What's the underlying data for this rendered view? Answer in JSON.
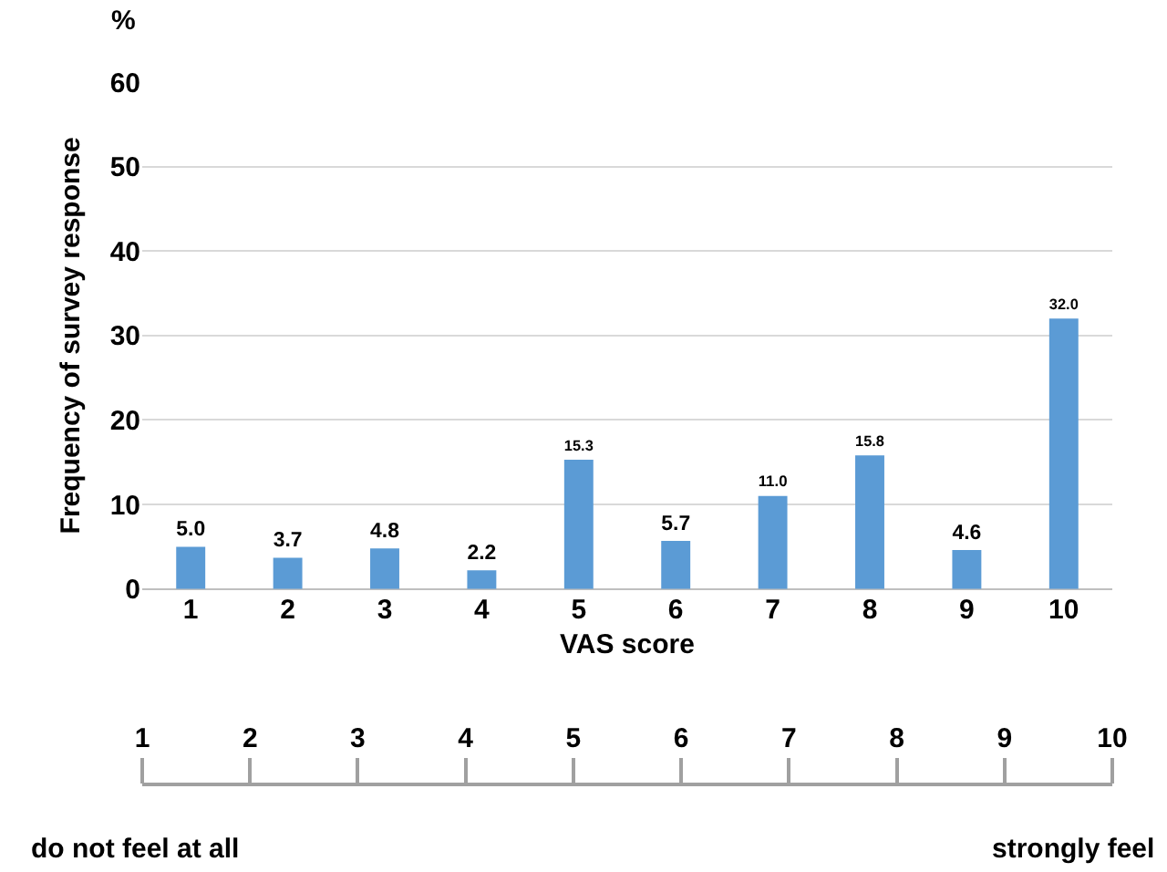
{
  "chart_data": {
    "type": "bar",
    "xlabel": "VAS score",
    "ylabel": "Frequency of survey response",
    "categories": [
      "1",
      "2",
      "3",
      "4",
      "5",
      "6",
      "7",
      "8",
      "9",
      "10"
    ],
    "values": [
      5.0,
      3.7,
      4.8,
      2.2,
      15.3,
      5.7,
      11.0,
      15.8,
      4.6,
      32.0
    ],
    "value_labels": [
      "5.0",
      "3.7",
      "4.8",
      "2.2",
      "15.3",
      "5.7",
      "11.0",
      "15.8",
      "4.6",
      "32.0"
    ],
    "color": "#5b9bd5",
    "ylim": [
      0,
      60
    ],
    "yticks": [
      0,
      10,
      20,
      30,
      40,
      50,
      60
    ],
    "grid": "y",
    "legend": false,
    "annotations": [
      "%",
      "do not feel at all",
      "strongly feel"
    ]
  }
}
